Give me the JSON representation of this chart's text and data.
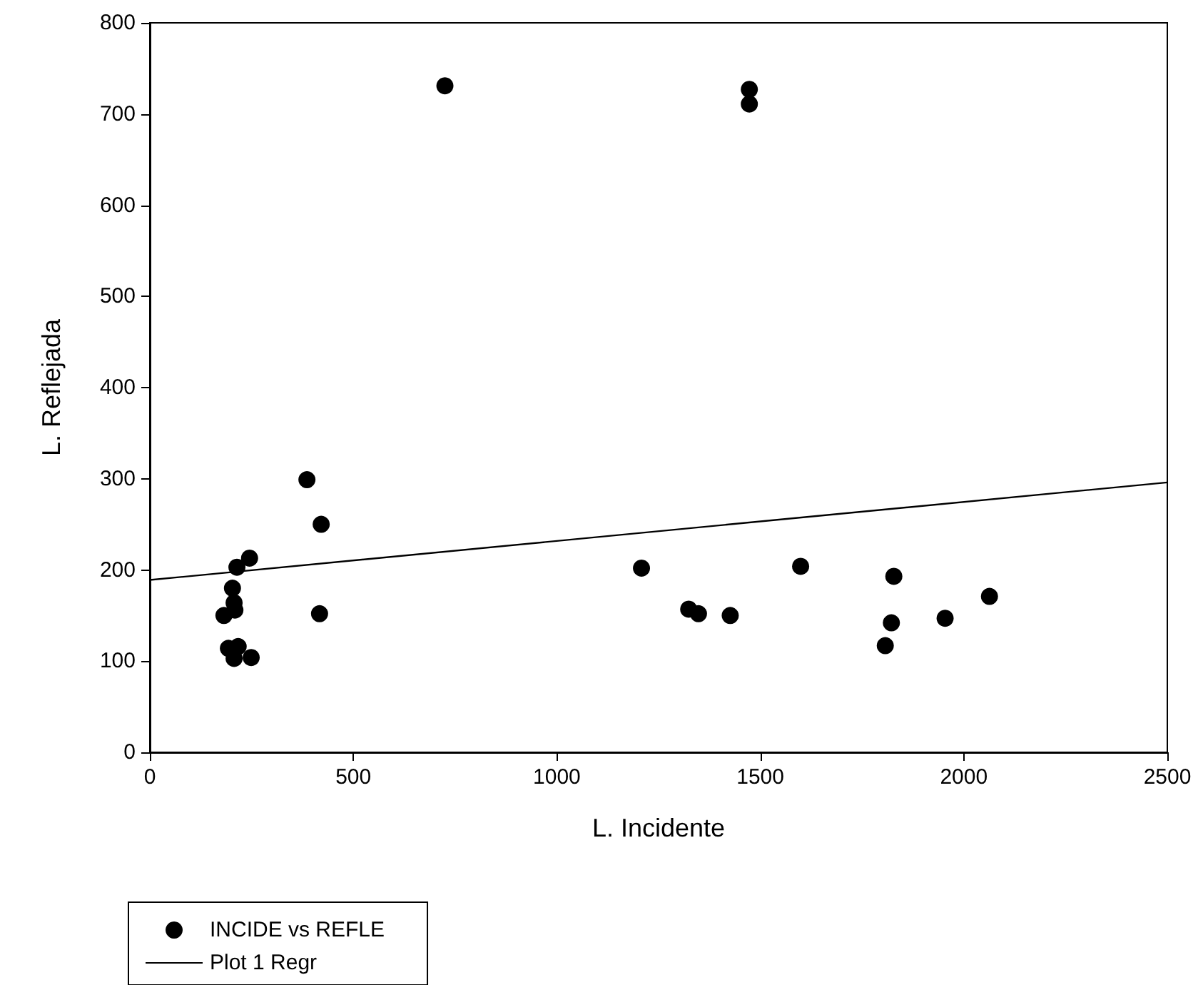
{
  "chart_data": {
    "type": "scatter",
    "xlabel": "L. Incidente",
    "ylabel": "L. Reflejada",
    "xlim": [
      0,
      2500
    ],
    "xticks": [
      0,
      500,
      1000,
      1500,
      2000,
      2500
    ],
    "ylim": [
      0,
      800
    ],
    "yticks": [
      0,
      100,
      200,
      300,
      400,
      500,
      600,
      700,
      800
    ],
    "grid": false,
    "legend": "bottom left",
    "series": [
      {
        "name": "INCIDE vs REFLE",
        "marker": "circle",
        "color": "#000000",
        "x": [
          725,
          1473,
          1473,
          386,
          421,
          417,
          245,
          214,
          203,
          207,
          209,
          182,
          193,
          217,
          207,
          249,
          1208,
          1324,
          1348,
          1426,
          1599,
          1828,
          1822,
          1807,
          1954,
          2063
        ],
        "values": [
          731,
          727,
          711,
          299,
          250,
          152,
          213,
          203,
          180,
          164,
          156,
          150,
          114,
          116,
          103,
          104,
          202,
          157,
          152,
          150,
          204,
          193,
          142,
          117,
          147,
          171
        ]
      },
      {
        "name": "Plot 1 Regr",
        "type": "line",
        "marker": "none",
        "line_style": "solid",
        "color": "#000000",
        "x": [
          0,
          2500
        ],
        "values": [
          189,
          296
        ]
      }
    ]
  }
}
